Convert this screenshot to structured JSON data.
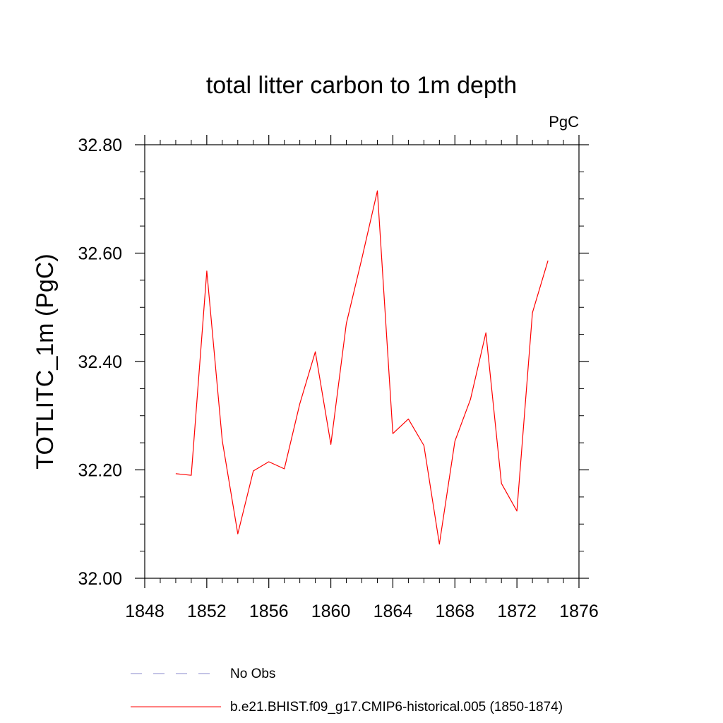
{
  "chart_data": {
    "type": "line",
    "title": "total litter carbon to 1m depth",
    "units_label": "PgC",
    "xlabel": "",
    "ylabel": "TOTLITC_1m  (PgC)",
    "xlim": [
      1848,
      1876
    ],
    "ylim": [
      32.0,
      32.8
    ],
    "x_ticks": [
      "1848",
      "1852",
      "1856",
      "1860",
      "1864",
      "1868",
      "1872",
      "1876"
    ],
    "y_ticks": [
      "32.00",
      "32.20",
      "32.40",
      "32.60",
      "32.80"
    ],
    "grid": false,
    "legend_position": "bottom",
    "series": [
      {
        "name": "b.e21.BHIST.f09_g17.CMIP6-historical.005 (1850-1874)",
        "color": "#ff0000",
        "style": "solid",
        "x": [
          1850,
          1851,
          1852,
          1853,
          1854,
          1855,
          1856,
          1857,
          1858,
          1859,
          1860,
          1861,
          1862,
          1863,
          1864,
          1865,
          1866,
          1867,
          1868,
          1869,
          1870,
          1871,
          1872,
          1873,
          1874
        ],
        "values": [
          32.193,
          32.19,
          32.567,
          32.254,
          32.082,
          32.198,
          32.215,
          32.202,
          32.322,
          32.418,
          32.247,
          32.47,
          32.59,
          32.715,
          32.267,
          32.294,
          32.245,
          32.063,
          32.253,
          32.33,
          32.453,
          32.175,
          32.124,
          32.49,
          32.586
        ]
      }
    ],
    "legend": [
      {
        "label": "No Obs",
        "color": "#8888cc",
        "style": "dashed"
      },
      {
        "label": "b.e21.BHIST.f09_g17.CMIP6-historical.005 (1850-1874)",
        "color": "#ff0000",
        "style": "solid"
      }
    ]
  }
}
